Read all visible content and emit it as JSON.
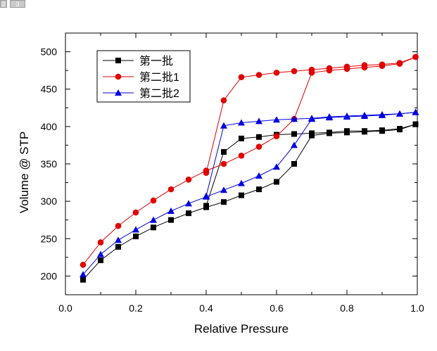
{
  "page_tabs": [
    "2",
    "3"
  ],
  "chart_data": {
    "type": "line",
    "title": "",
    "xlabel": "Relative Pressure",
    "ylabel": "Volume @ STP",
    "xlim": [
      0.0,
      1.0
    ],
    "ylim": [
      175,
      525
    ],
    "xticks": [
      "0.0",
      "0.2",
      "0.4",
      "0.6",
      "0.8",
      "1.0"
    ],
    "yticks": [
      "200",
      "250",
      "300",
      "350",
      "400",
      "450",
      "500"
    ],
    "grid": false,
    "legend_position": "top-left",
    "series": [
      {
        "name": "第一批",
        "color": "#000000",
        "marker": "square",
        "adsorption": {
          "x": [
            0.05,
            0.1,
            0.15,
            0.2,
            0.25,
            0.3,
            0.35,
            0.4,
            0.45,
            0.5,
            0.55,
            0.6,
            0.65,
            0.7,
            0.75,
            0.8,
            0.85,
            0.9,
            0.95,
            0.995
          ],
          "y": [
            195,
            221,
            239,
            253,
            265,
            275,
            284,
            292,
            299,
            308,
            316,
            326,
            350,
            388,
            391,
            392,
            393,
            394,
            396,
            403
          ]
        },
        "desorption": {
          "x": [
            0.995,
            0.95,
            0.9,
            0.85,
            0.8,
            0.75,
            0.7,
            0.65,
            0.6,
            0.55,
            0.5,
            0.45,
            0.4
          ],
          "y": [
            403,
            397,
            395,
            394,
            394,
            392,
            391,
            390,
            389,
            386,
            384,
            366,
            294
          ]
        }
      },
      {
        "name": "第二批1",
        "color": "#e00000",
        "marker": "circle",
        "adsorption": {
          "x": [
            0.05,
            0.1,
            0.15,
            0.2,
            0.25,
            0.3,
            0.35,
            0.4,
            0.45,
            0.5,
            0.55,
            0.6,
            0.65,
            0.7,
            0.75,
            0.8,
            0.85,
            0.9,
            0.95,
            0.995
          ],
          "y": [
            215,
            245,
            267,
            285,
            301,
            316,
            329,
            341,
            350,
            361,
            373,
            387,
            410,
            472,
            475,
            477,
            479,
            481,
            484,
            493
          ]
        },
        "desorption": {
          "x": [
            0.995,
            0.95,
            0.9,
            0.85,
            0.8,
            0.75,
            0.7,
            0.65,
            0.6,
            0.55,
            0.5,
            0.45,
            0.4
          ],
          "y": [
            493,
            485,
            483,
            482,
            480,
            478,
            476,
            474,
            472,
            469,
            466,
            435,
            338
          ]
        }
      },
      {
        "name": "第二批2",
        "color": "#0000e0",
        "marker": "triangle",
        "adsorption": {
          "x": [
            0.05,
            0.1,
            0.15,
            0.2,
            0.25,
            0.3,
            0.35,
            0.4,
            0.45,
            0.5,
            0.55,
            0.6,
            0.65,
            0.7,
            0.75,
            0.8,
            0.85,
            0.9,
            0.95,
            0.995
          ],
          "y": [
            202,
            229,
            248,
            262,
            275,
            287,
            297,
            306,
            315,
            324,
            334,
            346,
            375,
            410,
            412,
            413,
            414,
            415,
            417,
            419
          ]
        },
        "desorption": {
          "x": [
            0.995,
            0.95,
            0.9,
            0.85,
            0.8,
            0.75,
            0.7,
            0.65,
            0.6,
            0.55,
            0.5,
            0.45,
            0.4
          ],
          "y": [
            419,
            417,
            416,
            415,
            414,
            413,
            411,
            410,
            409,
            407,
            405,
            401,
            307
          ]
        }
      }
    ]
  }
}
